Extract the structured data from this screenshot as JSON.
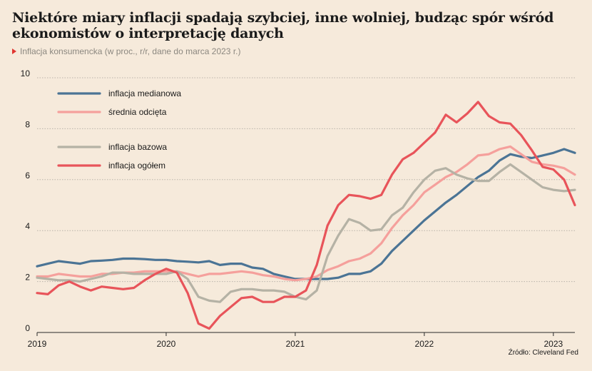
{
  "title": "Niektóre miary inflacji spadają szybciej, inne wolniej, budząc spór wśród ekonomistów o interpretację danych",
  "subtitle": "Inflacja konsumencka (w proc., r/r, dane do marca 2023 r.)",
  "source": "Źródło: Cleveland Fed",
  "chart_data": {
    "type": "line",
    "title": "Niektóre miary inflacji spadają szybciej, inne wolniej, budząc spór wśród ekonomistów o interpretację danych",
    "subtitle": "Inflacja konsumencka (w proc., r/r, dane do marca 2023 r.)",
    "xlabel": "",
    "ylabel": "",
    "x_start": "2019-01",
    "x_end": "2023-03",
    "xticks": [
      "2019",
      "2020",
      "2021",
      "2022",
      "2023"
    ],
    "ylim": [
      0,
      10
    ],
    "yticks": [
      0,
      2,
      4,
      6,
      8,
      10
    ],
    "grid": "horizontal dotted",
    "legend_position": "top-left",
    "x": [
      "2019-01",
      "2019-02",
      "2019-03",
      "2019-04",
      "2019-05",
      "2019-06",
      "2019-07",
      "2019-08",
      "2019-09",
      "2019-10",
      "2019-11",
      "2019-12",
      "2020-01",
      "2020-02",
      "2020-03",
      "2020-04",
      "2020-05",
      "2020-06",
      "2020-07",
      "2020-08",
      "2020-09",
      "2020-10",
      "2020-11",
      "2020-12",
      "2021-01",
      "2021-02",
      "2021-03",
      "2021-04",
      "2021-05",
      "2021-06",
      "2021-07",
      "2021-08",
      "2021-09",
      "2021-10",
      "2021-11",
      "2021-12",
      "2022-01",
      "2022-02",
      "2022-03",
      "2022-04",
      "2022-05",
      "2022-06",
      "2022-07",
      "2022-08",
      "2022-09",
      "2022-10",
      "2022-11",
      "2022-12",
      "2023-01",
      "2023-02",
      "2023-03"
    ],
    "series": [
      {
        "name": "inflacja medianowa",
        "color": "#4b7495",
        "values": [
          2.6,
          2.7,
          2.8,
          2.75,
          2.7,
          2.8,
          2.82,
          2.85,
          2.9,
          2.9,
          2.88,
          2.85,
          2.85,
          2.8,
          2.78,
          2.75,
          2.8,
          2.65,
          2.7,
          2.7,
          2.55,
          2.5,
          2.3,
          2.2,
          2.1,
          2.1,
          2.1,
          2.1,
          2.15,
          2.3,
          2.3,
          2.4,
          2.7,
          3.2,
          3.6,
          4.0,
          4.4,
          4.75,
          5.1,
          5.4,
          5.75,
          6.1,
          6.35,
          6.75,
          7.0,
          6.9,
          6.85,
          6.95,
          7.05,
          7.2,
          7.05
        ]
      },
      {
        "name": "średnia odcięta",
        "color": "#f5a09c",
        "values": [
          2.2,
          2.2,
          2.3,
          2.25,
          2.2,
          2.2,
          2.3,
          2.3,
          2.35,
          2.35,
          2.4,
          2.4,
          2.4,
          2.4,
          2.3,
          2.2,
          2.3,
          2.3,
          2.35,
          2.4,
          2.35,
          2.25,
          2.2,
          2.1,
          2.05,
          2.1,
          2.2,
          2.45,
          2.6,
          2.8,
          2.9,
          3.1,
          3.5,
          4.1,
          4.6,
          5.0,
          5.5,
          5.8,
          6.1,
          6.3,
          6.6,
          6.95,
          7.0,
          7.2,
          7.3,
          7.0,
          6.7,
          6.6,
          6.55,
          6.45,
          6.2
        ]
      },
      {
        "name": "inflacja bazowa",
        "color": "#b5b2a5",
        "values": [
          2.15,
          2.1,
          2.05,
          2.05,
          2.0,
          2.1,
          2.2,
          2.35,
          2.35,
          2.3,
          2.3,
          2.3,
          2.3,
          2.4,
          2.1,
          1.4,
          1.25,
          1.2,
          1.6,
          1.7,
          1.7,
          1.65,
          1.65,
          1.6,
          1.4,
          1.3,
          1.65,
          3.0,
          3.8,
          4.45,
          4.3,
          4.0,
          4.05,
          4.6,
          4.9,
          5.5,
          6.0,
          6.35,
          6.45,
          6.2,
          6.05,
          5.95,
          5.95,
          6.3,
          6.6,
          6.3,
          6.0,
          5.7,
          5.6,
          5.55,
          5.6
        ]
      },
      {
        "name": "inflacja ogółem",
        "color": "#e8545a",
        "values": [
          1.55,
          1.5,
          1.85,
          2.0,
          1.8,
          1.65,
          1.8,
          1.75,
          1.7,
          1.75,
          2.05,
          2.3,
          2.5,
          2.35,
          1.55,
          0.35,
          0.15,
          0.65,
          1.0,
          1.35,
          1.4,
          1.2,
          1.2,
          1.4,
          1.4,
          1.65,
          2.65,
          4.2,
          5.0,
          5.4,
          5.35,
          5.25,
          5.4,
          6.2,
          6.8,
          7.05,
          7.45,
          7.85,
          8.55,
          8.25,
          8.6,
          9.05,
          8.5,
          8.25,
          8.2,
          7.75,
          7.15,
          6.5,
          6.4,
          6.0,
          5.0
        ]
      }
    ]
  }
}
